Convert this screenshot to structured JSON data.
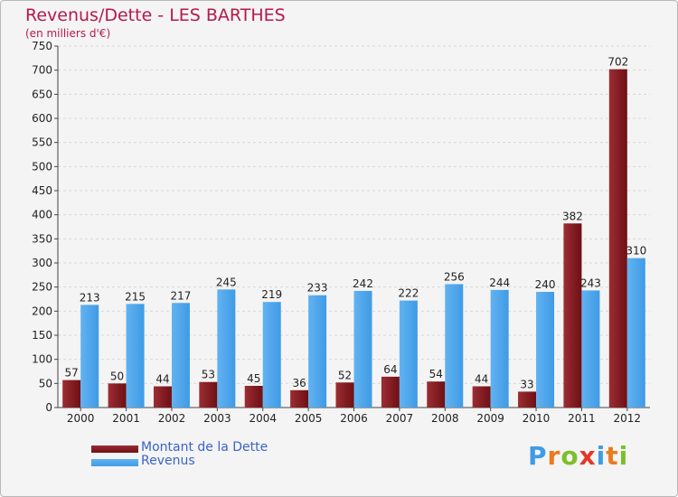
{
  "title": "Revenus/Dette - LES BARTHES",
  "subtitle": "(en milliers d'€)",
  "legend": {
    "debt": "Montant de la Dette",
    "revenue": "Revenus"
  },
  "logo": {
    "letters": [
      "P",
      "r",
      "o",
      "x",
      "i",
      "t",
      "i"
    ],
    "colors": [
      "#3f9be6",
      "#e87c1e",
      "#7bbf2a",
      "#e2382a",
      "#3f9be6",
      "#e87c1e",
      "#7bbf2a"
    ]
  },
  "colors": {
    "debt": "#6e0f14",
    "debt_light": "#9b2e33",
    "revenue": "#3f9be6",
    "revenue_light": "#62b2f0"
  },
  "chart_data": {
    "type": "bar",
    "categories": [
      "2000",
      "2001",
      "2002",
      "2003",
      "2004",
      "2005",
      "2006",
      "2007",
      "2008",
      "2009",
      "2010",
      "2011",
      "2012"
    ],
    "series": [
      {
        "name": "Montant de la Dette",
        "values": [
          57,
          50,
          44,
          53,
          45,
          36,
          52,
          64,
          54,
          44,
          33,
          382,
          702
        ]
      },
      {
        "name": "Revenus",
        "values": [
          213,
          215,
          217,
          245,
          219,
          233,
          242,
          222,
          256,
          244,
          240,
          243,
          310
        ]
      }
    ],
    "ylim": [
      0,
      750
    ],
    "yticks": [
      0,
      50,
      100,
      150,
      200,
      250,
      300,
      350,
      400,
      450,
      500,
      550,
      600,
      650,
      700,
      750
    ],
    "grid": true,
    "legend_position": "bottom-left"
  }
}
